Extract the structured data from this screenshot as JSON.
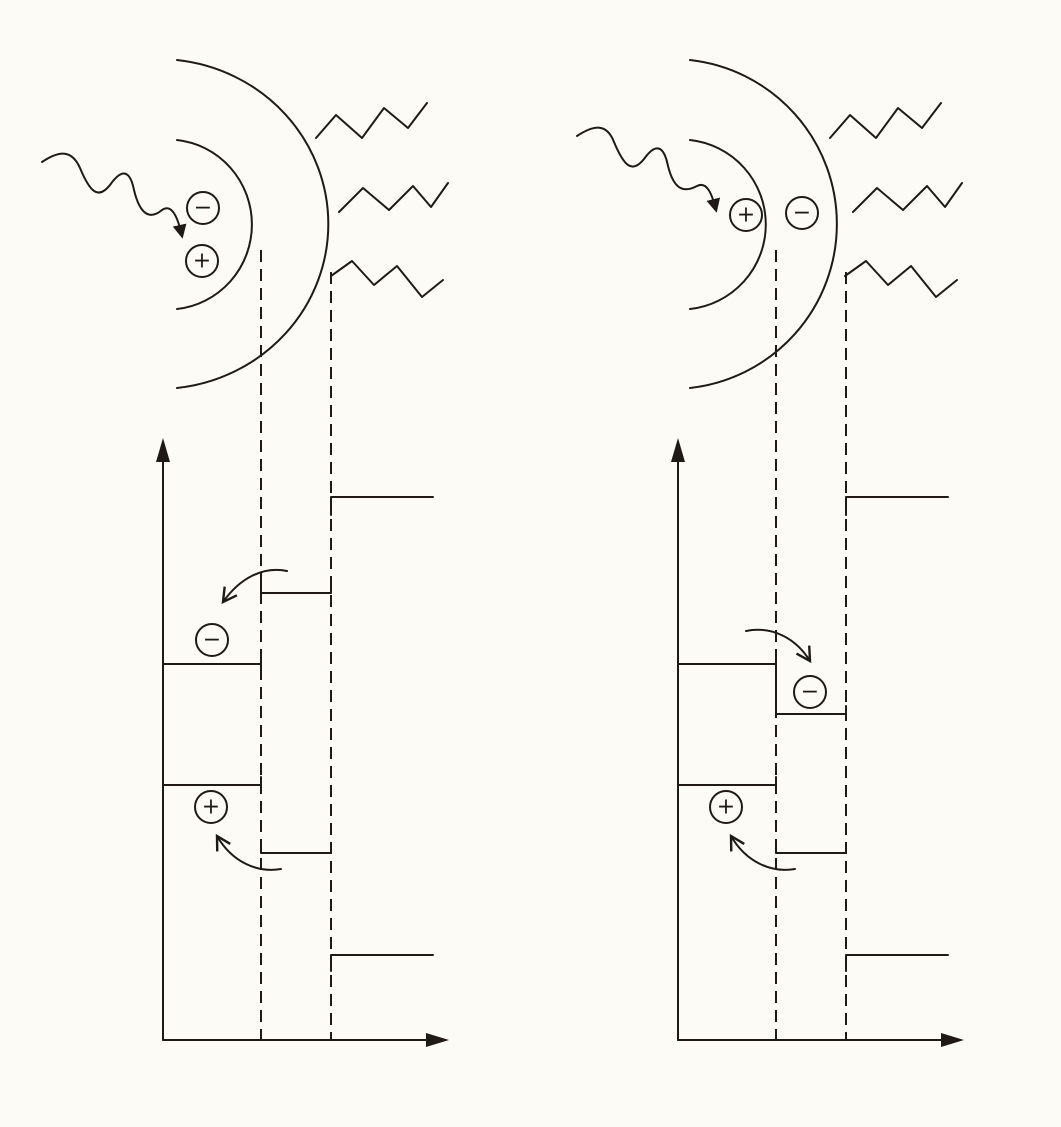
{
  "charge_symbols": {
    "negative": "−",
    "positive": "+"
  },
  "panels": [
    {
      "id": "left"
    },
    {
      "id": "right"
    }
  ],
  "colors": {
    "ink": "#1f1a17",
    "background": "#fcfbf5"
  },
  "icons": [
    "wavy-photon-arrow",
    "zigzag-line",
    "curved-arrow",
    "arrowhead"
  ]
}
